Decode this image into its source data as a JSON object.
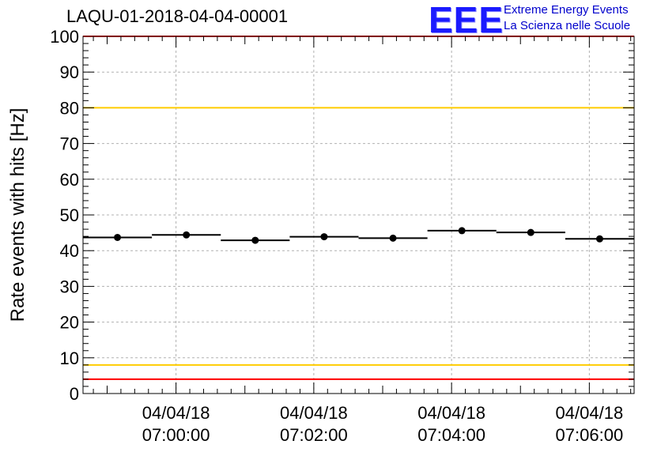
{
  "header": {
    "run_id": "LAQU-01-2018-04-04-00001"
  },
  "logo": {
    "mark": "EEE",
    "line1": "Extreme Energy Events",
    "line2": "La Scienza nelle Scuole"
  },
  "chart_data": {
    "type": "line",
    "title": "LAQU-01-2018-04-04-00001",
    "xlabel": "",
    "ylabel": "Rate events with hits [Hz]",
    "xlim": [
      "06:58:39",
      "07:06:39"
    ],
    "ylim": [
      0,
      100
    ],
    "grid": true,
    "x_ticks": [
      {
        "t": "07:00:00",
        "label": [
          "04/04/18",
          "07:00:00"
        ]
      },
      {
        "t": "07:02:00",
        "label": [
          "04/04/18",
          "07:02:00"
        ]
      },
      {
        "t": "07:04:00",
        "label": [
          "04/04/18",
          "07:04:00"
        ]
      },
      {
        "t": "07:06:00",
        "label": [
          "04/04/18",
          "07:06:00"
        ]
      }
    ],
    "y_ticks": [
      0,
      10,
      20,
      30,
      40,
      50,
      60,
      70,
      80,
      90,
      100
    ],
    "series": [
      {
        "points": [
          {
            "start": "06:58:39",
            "end": "06:59:39",
            "center": "06:59:09",
            "value": 43.7
          },
          {
            "start": "06:59:39",
            "end": "07:00:39",
            "center": "07:00:09",
            "value": 44.4
          },
          {
            "start": "07:00:39",
            "end": "07:01:39",
            "center": "07:01:09",
            "value": 42.9
          },
          {
            "start": "07:01:39",
            "end": "07:02:39",
            "center": "07:02:09",
            "value": 43.9
          },
          {
            "start": "07:02:39",
            "end": "07:03:39",
            "center": "07:03:09",
            "value": 43.5
          },
          {
            "start": "07:03:39",
            "end": "07:04:39",
            "center": "07:04:09",
            "value": 45.6
          },
          {
            "start": "07:04:39",
            "end": "07:05:39",
            "center": "07:05:09",
            "value": 45.1
          },
          {
            "start": "07:05:39",
            "end": "07:06:39",
            "center": "07:06:09",
            "value": 43.3
          }
        ]
      }
    ],
    "reference_lines": [
      {
        "value": 100,
        "color": "#ff0000"
      },
      {
        "value": 80,
        "color": "#ffcc00"
      },
      {
        "value": 8,
        "color": "#ffcc00"
      },
      {
        "value": 4,
        "color": "#ff0000"
      }
    ]
  }
}
